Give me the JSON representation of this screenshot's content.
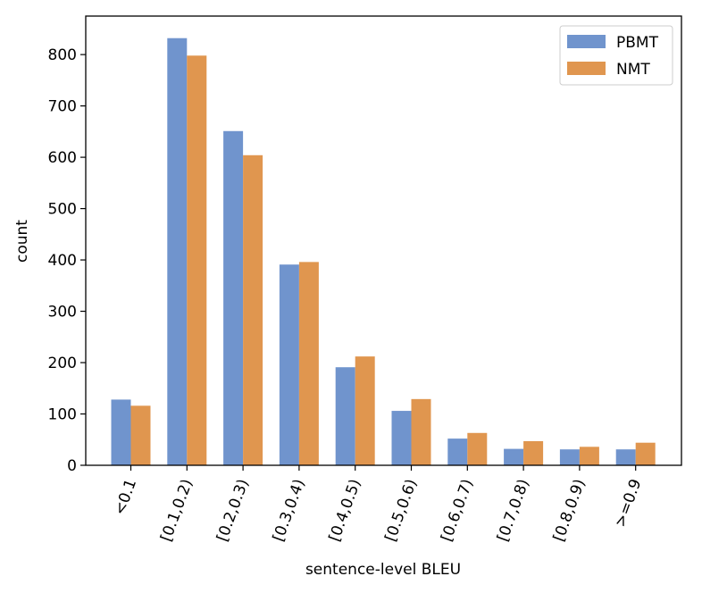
{
  "chart_data": {
    "type": "bar",
    "xlabel": "sentence-level BLEU",
    "ylabel": "count",
    "ylim": [
      0,
      875
    ],
    "yticks": [
      0,
      100,
      200,
      300,
      400,
      500,
      600,
      700,
      800
    ],
    "categories": [
      "<0.1",
      "[0.1,0.2)",
      "[0.2,0.3)",
      "[0.3,0.4)",
      "[0.4,0.5)",
      "[0.5,0.6)",
      "[0.6,0.7)",
      "[0.7,0.8)",
      "[0.8,0.9)",
      ">=0.9"
    ],
    "series": [
      {
        "name": "PBMT",
        "color": "#7094cd",
        "values": [
          128,
          832,
          651,
          391,
          191,
          106,
          52,
          32,
          31,
          31
        ]
      },
      {
        "name": "NMT",
        "color": "#e0964f",
        "values": [
          116,
          798,
          604,
          396,
          212,
          129,
          63,
          47,
          36,
          44
        ]
      }
    ],
    "legend": "top-right",
    "grid": false
  }
}
